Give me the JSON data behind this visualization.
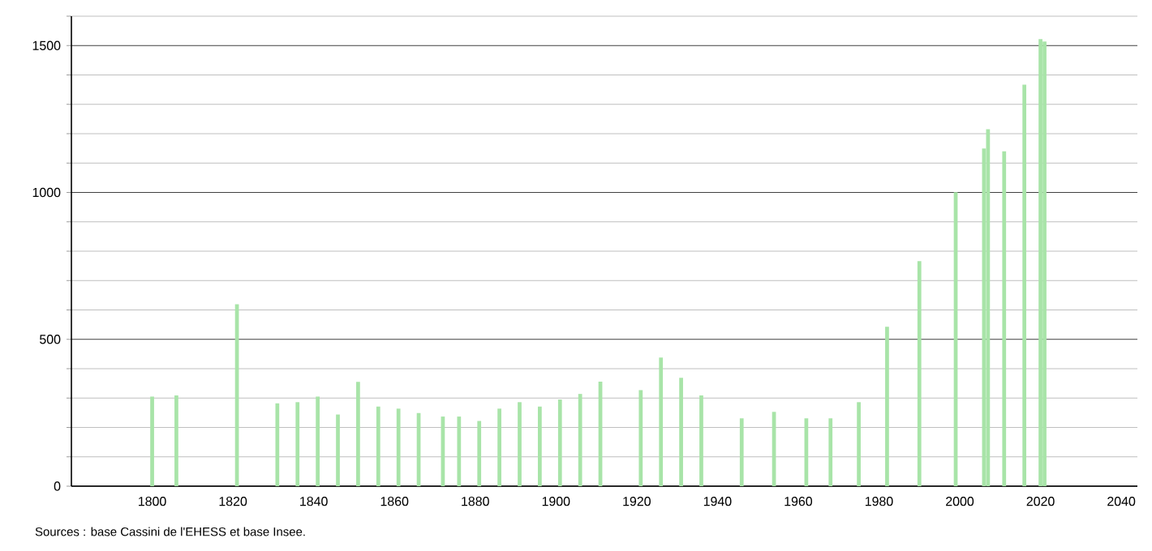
{
  "chart_data": {
    "type": "bar",
    "color": "#a8e4a8",
    "x": [
      1800,
      1806,
      1821,
      1831,
      1836,
      1841,
      1846,
      1851,
      1856,
      1861,
      1866,
      1872,
      1876,
      1881,
      1886,
      1891,
      1896,
      1901,
      1906,
      1911,
      1921,
      1926,
      1931,
      1936,
      1946,
      1954,
      1962,
      1968,
      1975,
      1982,
      1990,
      1999,
      2006,
      2007,
      2011,
      2016,
      2020,
      2021
    ],
    "values": [
      305,
      309,
      619,
      282,
      286,
      305,
      244,
      355,
      271,
      264,
      249,
      237,
      237,
      222,
      264,
      286,
      271,
      295,
      314,
      356,
      327,
      438,
      369,
      309,
      231,
      253,
      231,
      231,
      286,
      543,
      766,
      1001,
      1150,
      1215,
      1140,
      1367,
      1522,
      1514
    ],
    "xlim": [
      1780,
      2044
    ],
    "xticks": [
      1800,
      1820,
      1840,
      1860,
      1880,
      1900,
      1920,
      1940,
      1960,
      1980,
      2000,
      2020,
      2040
    ],
    "ylim": [
      0,
      1600
    ],
    "yticks": [
      0,
      {
        "value": 100,
        "label": null
      },
      {
        "value": 200,
        "label": null
      },
      {
        "value": 300,
        "label": null
      },
      {
        "value": 400,
        "label": null
      },
      500,
      {
        "value": 600,
        "label": null
      },
      {
        "value": 700,
        "label": null
      },
      {
        "value": 800,
        "label": null
      },
      {
        "value": 900,
        "label": null
      },
      1000,
      {
        "value": 1100,
        "label": null
      },
      {
        "value": 1200,
        "label": null
      },
      {
        "value": 1300,
        "label": null
      },
      {
        "value": 1400,
        "label": null
      },
      1500,
      {
        "value": 1600,
        "label": null
      }
    ],
    "grid": "y",
    "annotations": [
      "Sources : base Cassini de l'EHESS et base Insee."
    ]
  }
}
